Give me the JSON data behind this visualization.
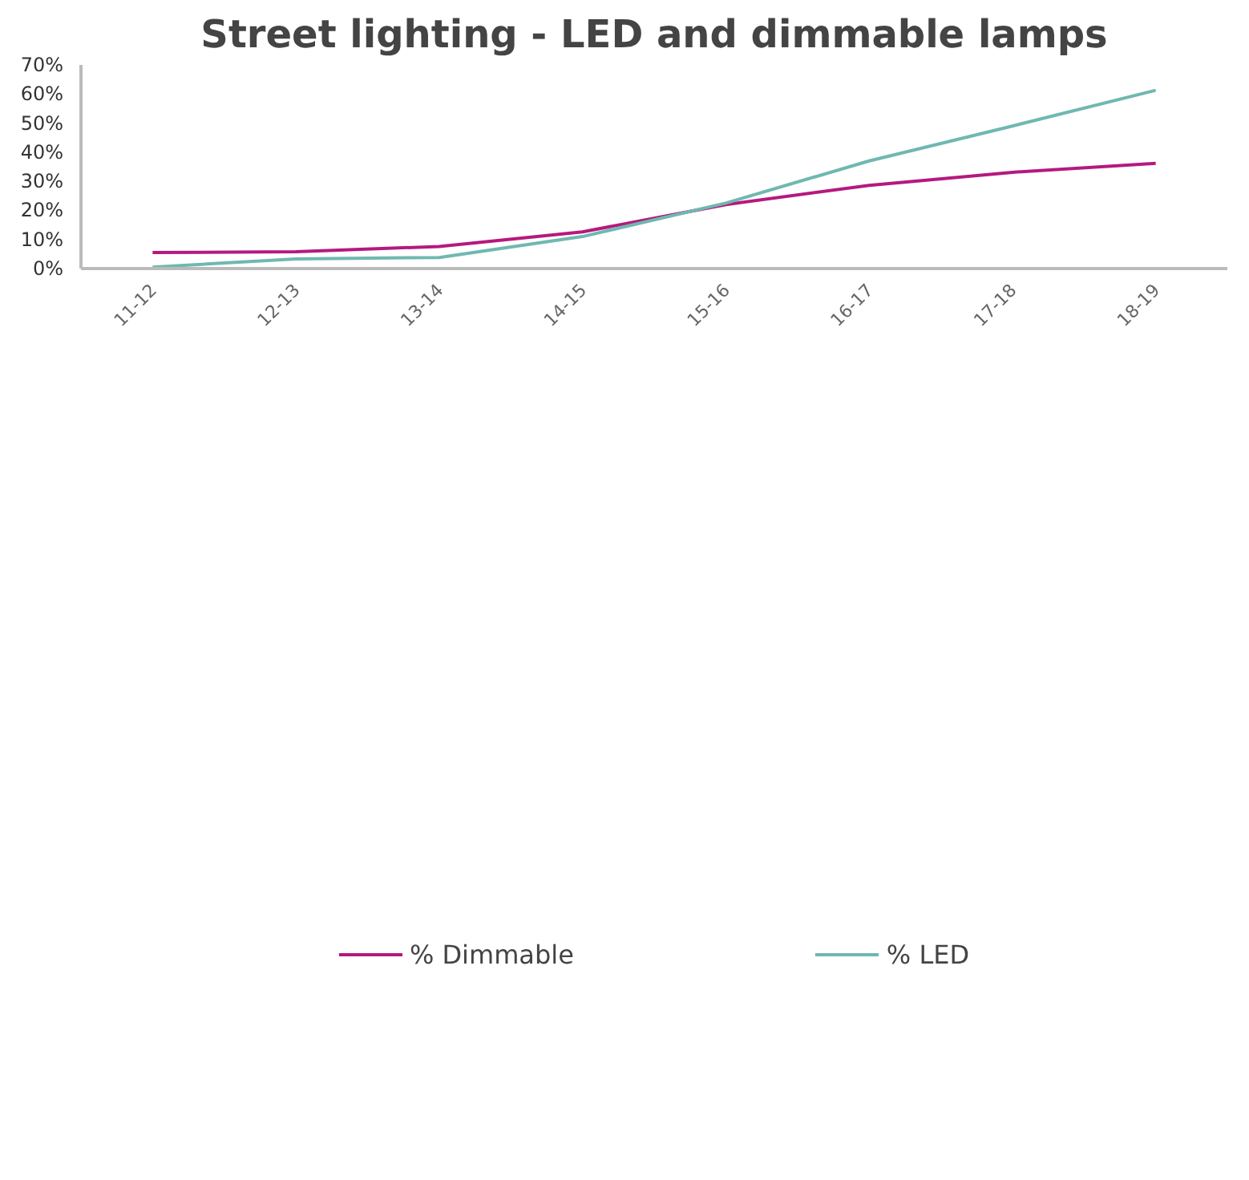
{
  "chart_data": {
    "type": "line",
    "title": "Street lighting - LED and dimmable lamps",
    "categories": [
      "11-12",
      "12-13",
      "13-14",
      "14-15",
      "15-16",
      "16-17",
      "17-18",
      "18-19"
    ],
    "series": [
      {
        "name": "% Dimmable",
        "color": "#b5197f",
        "values": [
          5.5,
          5.8,
          7.6,
          12.6,
          22,
          28.6,
          33.1,
          36.2
        ]
      },
      {
        "name": "% LED",
        "color": "#6fb8b0",
        "values": [
          0.5,
          3.3,
          3.8,
          11,
          22.5,
          37,
          49,
          61.3
        ]
      }
    ],
    "ylim": [
      0,
      70
    ],
    "yticks": [
      {
        "value": 0,
        "label": "0%"
      },
      {
        "value": 10,
        "label": "10%"
      },
      {
        "value": 20,
        "label": "20%"
      },
      {
        "value": 30,
        "label": "30%"
      },
      {
        "value": 40,
        "label": "40%"
      },
      {
        "value": 50,
        "label": "50%"
      },
      {
        "value": 60,
        "label": "60%"
      },
      {
        "value": 70,
        "label": "70%"
      }
    ],
    "grid": false,
    "legend": "bottom",
    "marker": "none",
    "line_style": "solid"
  }
}
